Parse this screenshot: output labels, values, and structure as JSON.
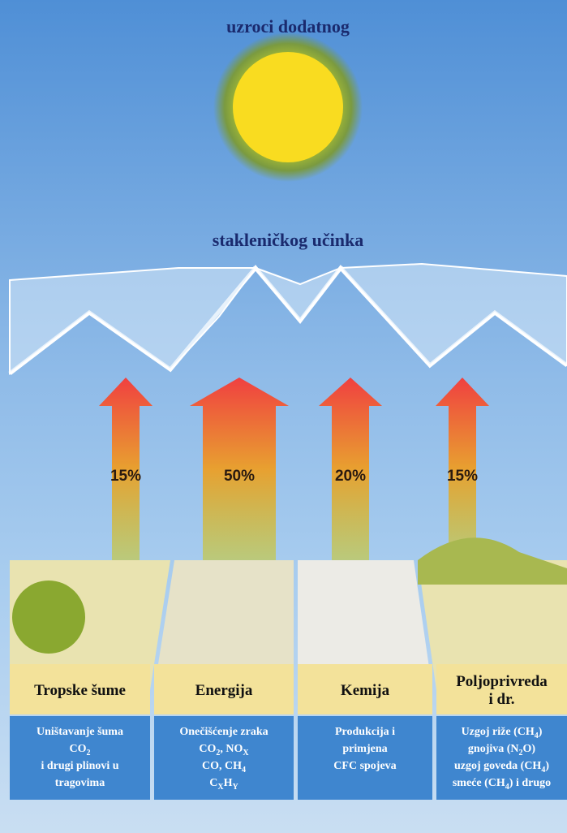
{
  "header": {
    "title_top": "uzroci dodatnog",
    "title_bottom": "stakleničkog učinka"
  },
  "sectors": [
    {
      "share": "15%",
      "label": [
        "Tropske šume"
      ],
      "lines": [
        [
          "Uništavanje šuma"
        ],
        [
          "CO",
          "2"
        ],
        [
          "i drugi plinovi u"
        ],
        [
          "tragovima"
        ]
      ]
    },
    {
      "share": "50%",
      "label": [
        "Energija"
      ],
      "lines": [
        [
          "Onečišćenje zraka"
        ],
        [
          "CO",
          "2",
          ", NO",
          "X"
        ],
        [
          "CO, CH",
          "4"
        ],
        [
          "C",
          "X",
          "H",
          "Y"
        ]
      ]
    },
    {
      "share": "20%",
      "label": [
        "Kemija"
      ],
      "lines": [
        [
          "Produkcija i"
        ],
        [
          "primjena"
        ],
        [
          "CFC spojeva"
        ]
      ]
    },
    {
      "share": "15%",
      "label": [
        "Poljoprivreda",
        "i dr."
      ],
      "lines": [
        [
          "Uzgoj riže (CH",
          "4",
          ")"
        ],
        [
          "gnojiva (N",
          "2",
          "O)"
        ],
        [
          "uzgoj goveda (CH",
          "4",
          ")"
        ],
        [
          "smeće (CH",
          "4",
          ") i drugo"
        ]
      ]
    }
  ]
}
